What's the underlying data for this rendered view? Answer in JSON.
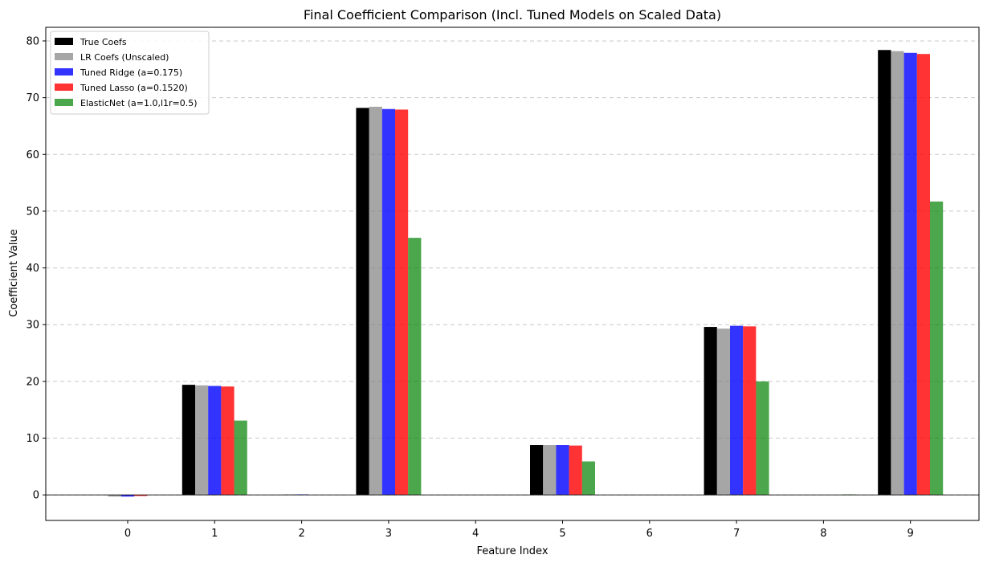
{
  "chart_data": {
    "type": "bar",
    "title": "Final Coefficient Comparison (Incl. Tuned Models on Scaled Data)",
    "xlabel": "Feature Index",
    "ylabel": "Coefficient Value",
    "categories": [
      "0",
      "1",
      "2",
      "3",
      "4",
      "5",
      "6",
      "7",
      "8",
      "9"
    ],
    "ylim": [
      -4.5,
      82.4
    ],
    "yticks": [
      0,
      10,
      20,
      30,
      40,
      50,
      60,
      70,
      80
    ],
    "grid": "y-dashed",
    "legend": "top-left",
    "series": [
      {
        "name": "True Coefs",
        "color": "#000000",
        "opacity": 1.0,
        "values": [
          0,
          19.4,
          0,
          68.2,
          0,
          8.8,
          0,
          29.6,
          0,
          78.4
        ]
      },
      {
        "name": "LR Coefs (Unscaled)",
        "color": "#808080",
        "opacity": 0.7,
        "values": [
          -0.3,
          19.3,
          0.1,
          68.4,
          0.0,
          8.8,
          0.0,
          29.3,
          0.0,
          78.2
        ]
      },
      {
        "name": "Tuned Ridge (a=0.175)",
        "color": "#0000ff",
        "opacity": 0.8,
        "values": [
          -0.3,
          19.2,
          0.1,
          68.0,
          0.0,
          8.8,
          0.0,
          29.8,
          0.0,
          77.9
        ]
      },
      {
        "name": "Tuned Lasso (a=0.1520)",
        "color": "#ff0000",
        "opacity": 0.8,
        "values": [
          -0.2,
          19.1,
          0.0,
          67.9,
          0.0,
          8.7,
          0.0,
          29.7,
          0.0,
          77.7
        ]
      },
      {
        "name": "ElasticNet (a=1.0,l1r=0.5)",
        "color": "#008000",
        "opacity": 0.7,
        "values": [
          0.0,
          13.1,
          0.0,
          45.3,
          0.0,
          5.9,
          0.0,
          20.0,
          0.1,
          51.7
        ]
      }
    ]
  }
}
